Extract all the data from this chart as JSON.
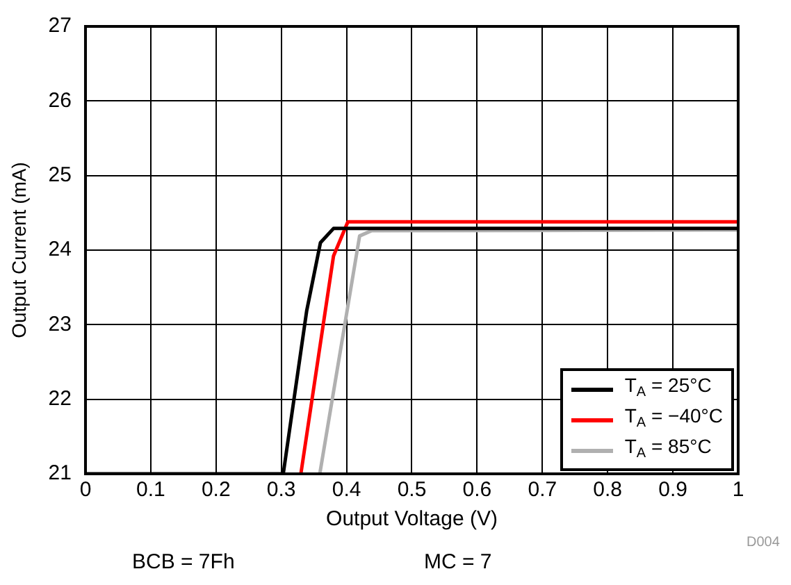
{
  "chart_data": {
    "type": "line",
    "xlabel": "Output Voltage (V)",
    "ylabel": "Output Current (mA)",
    "xlim": [
      0,
      1
    ],
    "xticks": [
      0,
      0.1,
      0.2,
      0.3,
      0.4,
      0.5,
      0.6,
      0.7,
      0.8,
      0.9,
      1
    ],
    "ylim": [
      21,
      27
    ],
    "yticks": [
      21,
      22,
      23,
      24,
      25,
      26,
      27
    ],
    "grid": true,
    "legend": "bottom right",
    "marker": "none",
    "line_style": "solid",
    "annotations": [
      "BCB = 7Fh",
      "MC = 7",
      "D004"
    ],
    "series": [
      {
        "name": "T$_{A}$ = 25°C",
        "color": "#000000",
        "x": [
          0,
          0.303,
          0.339,
          0.36,
          0.38,
          1
        ],
        "values": [
          21,
          21,
          23.19,
          24.1,
          24.29,
          24.29
        ]
      },
      {
        "name": "T$_{A}$ = −40°C",
        "color": "#ff0000",
        "x": [
          0.33,
          0.38,
          0.402,
          1
        ],
        "values": [
          21,
          23.92,
          24.38,
          24.38
        ]
      },
      {
        "name": "T$_{A}$ = 85°C",
        "color": "#b0b0b0",
        "x": [
          0.359,
          0.42,
          0.438,
          1
        ],
        "values": [
          21,
          24.19,
          24.26,
          24.27
        ]
      }
    ]
  }
}
